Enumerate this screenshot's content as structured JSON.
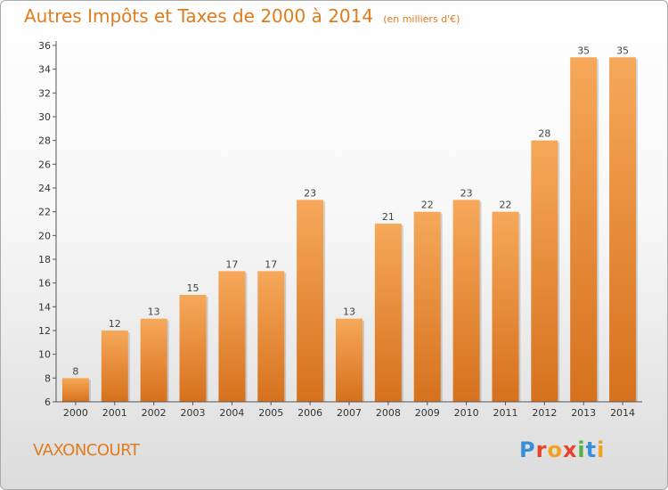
{
  "header": {
    "title": "Autres Impôts et Taxes de 2000 à 2014",
    "unit": "(en milliers d'€)"
  },
  "commune": "VAXONCOURT",
  "logo": {
    "text": "Proxiti",
    "letter_colors": [
      "#3a8fd8",
      "#e8412c",
      "#f0a21f",
      "#e8412c",
      "#56b23f",
      "#3a8fd8",
      "#f0a21f"
    ]
  },
  "colors": {
    "bar_light": "#f6a85a",
    "bar_dark": "#d6711d",
    "accent": "#e07b1e"
  },
  "chart_data": {
    "type": "bar",
    "categories": [
      "2000",
      "2001",
      "2002",
      "2003",
      "2004",
      "2005",
      "2006",
      "2007",
      "2008",
      "2009",
      "2010",
      "2011",
      "2012",
      "2013",
      "2014"
    ],
    "values": [
      8,
      12,
      13,
      15,
      17,
      17,
      23,
      13,
      21,
      22,
      23,
      22,
      28,
      35,
      35
    ],
    "data_labels": [
      "8",
      "12",
      "13",
      "15",
      "17",
      "17",
      "23",
      "13",
      "21",
      "22",
      "23",
      "22",
      "28",
      "35",
      "35"
    ],
    "title": "Autres Impôts et Taxes de 2000 à 2014",
    "xlabel": "",
    "ylabel": "",
    "ylim": [
      6,
      36
    ],
    "yticks": [
      "6",
      "8",
      "10",
      "12",
      "14",
      "16",
      "18",
      "20",
      "22",
      "24",
      "26",
      "28",
      "30",
      "32",
      "34",
      "36"
    ],
    "grid": false,
    "legend": "none"
  }
}
